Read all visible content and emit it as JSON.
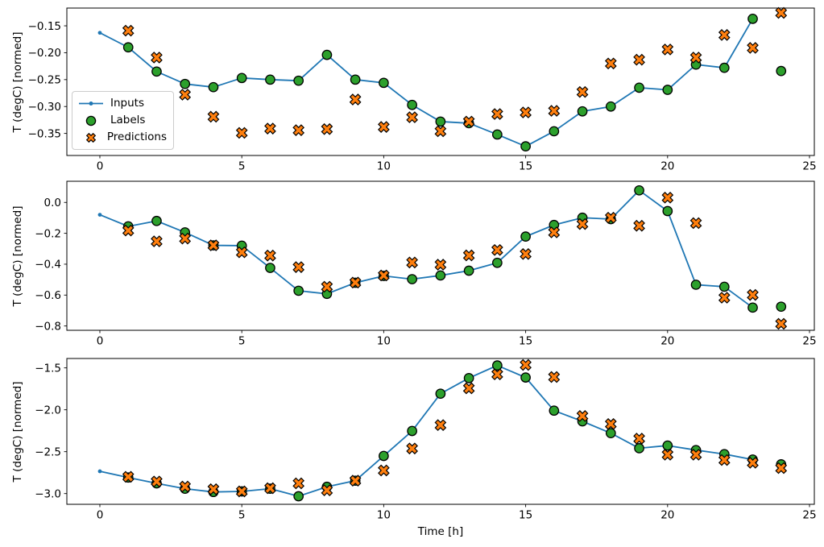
{
  "figure": {
    "background": "#ffffff",
    "title": ""
  },
  "chart_data": [
    {
      "type": "line",
      "title": "",
      "xlabel": "",
      "ylabel": "T (degC) [normed]",
      "grid": false,
      "xlim": [
        -1.163,
        25.17
      ],
      "ylim": [
        -0.391,
        -0.117
      ],
      "xticks": {
        "values": [
          0,
          5,
          10,
          15,
          20,
          25
        ],
        "labels": [
          "0",
          "5",
          "10",
          "15",
          "20",
          "25"
        ]
      },
      "yticks": {
        "values": [
          -0.15,
          -0.2,
          -0.25,
          -0.3,
          -0.35
        ],
        "labels": [
          "−0.15",
          "−0.20",
          "−0.25",
          "−0.30",
          "−0.35"
        ]
      },
      "legend": {
        "visible": true,
        "location": "center left"
      },
      "series": [
        {
          "name": "Inputs",
          "kind": "line",
          "marker": "point",
          "color": "#1f77b4",
          "x": [
            0,
            1,
            2,
            3,
            4,
            5,
            6,
            7,
            8,
            9,
            10,
            11,
            12,
            13,
            14,
            15,
            16,
            17,
            18,
            19,
            20,
            21,
            22,
            23
          ],
          "y": [
            -0.163,
            -0.19,
            -0.235,
            -0.258,
            -0.264,
            -0.247,
            -0.25,
            -0.252,
            -0.204,
            -0.25,
            -0.256,
            -0.297,
            -0.328,
            -0.331,
            -0.352,
            -0.374,
            -0.346,
            -0.309,
            -0.3,
            -0.265,
            -0.269,
            -0.222,
            -0.228,
            -0.137
          ]
        },
        {
          "name": "Labels",
          "kind": "scatter",
          "marker": "circle",
          "color": "#2ca02c",
          "edgecolor": "#000000",
          "x": [
            1,
            2,
            3,
            4,
            5,
            6,
            7,
            8,
            9,
            10,
            11,
            12,
            13,
            14,
            15,
            16,
            17,
            18,
            19,
            20,
            21,
            22,
            23,
            24
          ],
          "y": [
            -0.19,
            -0.235,
            -0.258,
            -0.264,
            -0.247,
            -0.25,
            -0.252,
            -0.204,
            -0.25,
            -0.256,
            -0.297,
            -0.328,
            -0.331,
            -0.352,
            -0.374,
            -0.346,
            -0.309,
            -0.3,
            -0.265,
            -0.269,
            -0.222,
            -0.228,
            -0.137,
            -0.234
          ]
        },
        {
          "name": "Predictions",
          "kind": "scatter",
          "marker": "X",
          "color": "#ff7f0e",
          "edgecolor": "#000000",
          "x": [
            1,
            2,
            3,
            4,
            5,
            6,
            7,
            8,
            9,
            10,
            11,
            12,
            13,
            14,
            15,
            16,
            17,
            18,
            19,
            20,
            21,
            22,
            23,
            24
          ],
          "y": [
            -0.159,
            -0.209,
            -0.278,
            -0.319,
            -0.349,
            -0.341,
            -0.344,
            -0.342,
            -0.287,
            -0.338,
            -0.32,
            -0.346,
            -0.328,
            -0.314,
            -0.311,
            -0.308,
            -0.273,
            -0.22,
            -0.213,
            -0.194,
            -0.209,
            -0.167,
            -0.191,
            -0.126
          ]
        }
      ]
    },
    {
      "type": "line",
      "title": "",
      "xlabel": "",
      "ylabel": "T (degC) [normed]",
      "grid": false,
      "xlim": [
        -1.163,
        25.17
      ],
      "ylim": [
        -0.828,
        0.137
      ],
      "xticks": {
        "values": [
          0,
          5,
          10,
          15,
          20,
          25
        ],
        "labels": [
          "0",
          "5",
          "10",
          "15",
          "20",
          "25"
        ]
      },
      "yticks": {
        "values": [
          0.0,
          -0.2,
          -0.4,
          -0.6,
          -0.8
        ],
        "labels": [
          "0.0",
          "−0.2",
          "−0.4",
          "−0.6",
          "−0.8"
        ]
      },
      "legend": {
        "visible": false
      },
      "series": [
        {
          "name": "Inputs",
          "kind": "line",
          "marker": "point",
          "color": "#1f77b4",
          "x": [
            0,
            1,
            2,
            3,
            4,
            5,
            6,
            7,
            8,
            9,
            10,
            11,
            12,
            13,
            14,
            15,
            16,
            17,
            18,
            19,
            20,
            21,
            22,
            23
          ],
          "y": [
            -0.08,
            -0.155,
            -0.12,
            -0.194,
            -0.278,
            -0.28,
            -0.424,
            -0.572,
            -0.592,
            -0.52,
            -0.476,
            -0.497,
            -0.473,
            -0.442,
            -0.391,
            -0.221,
            -0.146,
            -0.099,
            -0.108,
            0.078,
            -0.056,
            -0.533,
            -0.546,
            -0.681
          ]
        },
        {
          "name": "Labels",
          "kind": "scatter",
          "marker": "circle",
          "color": "#2ca02c",
          "edgecolor": "#000000",
          "x": [
            1,
            2,
            3,
            4,
            5,
            6,
            7,
            8,
            9,
            10,
            11,
            12,
            13,
            14,
            15,
            16,
            17,
            18,
            19,
            20,
            21,
            22,
            23,
            24
          ],
          "y": [
            -0.155,
            -0.12,
            -0.194,
            -0.278,
            -0.28,
            -0.424,
            -0.572,
            -0.592,
            -0.52,
            -0.476,
            -0.497,
            -0.473,
            -0.442,
            -0.391,
            -0.221,
            -0.146,
            -0.099,
            -0.108,
            0.078,
            -0.056,
            -0.533,
            -0.546,
            -0.681,
            -0.675
          ]
        },
        {
          "name": "Predictions",
          "kind": "scatter",
          "marker": "X",
          "color": "#ff7f0e",
          "edgecolor": "#000000",
          "x": [
            1,
            2,
            3,
            4,
            5,
            6,
            7,
            8,
            9,
            10,
            11,
            12,
            13,
            14,
            15,
            16,
            17,
            18,
            19,
            20,
            21,
            22,
            23,
            24
          ],
          "y": [
            -0.182,
            -0.252,
            -0.234,
            -0.278,
            -0.323,
            -0.344,
            -0.419,
            -0.546,
            -0.519,
            -0.473,
            -0.389,
            -0.403,
            -0.343,
            -0.308,
            -0.334,
            -0.194,
            -0.14,
            -0.099,
            -0.151,
            0.031,
            -0.134,
            -0.617,
            -0.599,
            -0.786
          ]
        }
      ]
    },
    {
      "type": "line",
      "title": "",
      "xlabel": "Time [h]",
      "ylabel": "T (degC) [normed]",
      "grid": false,
      "xlim": [
        -1.163,
        25.17
      ],
      "ylim": [
        -3.128,
        -1.388
      ],
      "xticks": {
        "values": [
          0,
          5,
          10,
          15,
          20,
          25
        ],
        "labels": [
          "0",
          "5",
          "10",
          "15",
          "20",
          "25"
        ]
      },
      "yticks": {
        "values": [
          -1.5,
          -2.0,
          -2.5,
          -3.0
        ],
        "labels": [
          "−1.5",
          "−2.0",
          "−2.5",
          "−3.0"
        ]
      },
      "legend": {
        "visible": false
      },
      "series": [
        {
          "name": "Inputs",
          "kind": "line",
          "marker": "point",
          "color": "#1f77b4",
          "x": [
            0,
            1,
            2,
            3,
            4,
            5,
            6,
            7,
            8,
            9,
            10,
            11,
            12,
            13,
            14,
            15,
            16,
            17,
            18,
            19,
            20,
            21,
            22,
            23
          ],
          "y": [
            -2.734,
            -2.808,
            -2.878,
            -2.942,
            -2.981,
            -2.974,
            -2.942,
            -3.032,
            -2.919,
            -2.846,
            -2.551,
            -2.253,
            -1.808,
            -1.622,
            -1.471,
            -1.615,
            -2.01,
            -2.138,
            -2.279,
            -2.459,
            -2.427,
            -2.481,
            -2.529,
            -2.594
          ]
        },
        {
          "name": "Labels",
          "kind": "scatter",
          "marker": "circle",
          "color": "#2ca02c",
          "edgecolor": "#000000",
          "x": [
            1,
            2,
            3,
            4,
            5,
            6,
            7,
            8,
            9,
            10,
            11,
            12,
            13,
            14,
            15,
            16,
            17,
            18,
            19,
            20,
            21,
            22,
            23,
            24
          ],
          "y": [
            -2.808,
            -2.878,
            -2.942,
            -2.981,
            -2.974,
            -2.942,
            -3.032,
            -2.919,
            -2.846,
            -2.551,
            -2.253,
            -1.808,
            -1.622,
            -1.471,
            -1.615,
            -2.01,
            -2.138,
            -2.279,
            -2.459,
            -2.427,
            -2.481,
            -2.529,
            -2.594,
            -2.651
          ]
        },
        {
          "name": "Predictions",
          "kind": "scatter",
          "marker": "X",
          "color": "#ff7f0e",
          "edgecolor": "#000000",
          "x": [
            1,
            2,
            3,
            4,
            5,
            6,
            7,
            8,
            9,
            10,
            11,
            12,
            13,
            14,
            15,
            16,
            17,
            18,
            19,
            20,
            21,
            22,
            23,
            24
          ],
          "y": [
            -2.8,
            -2.856,
            -2.916,
            -2.948,
            -2.974,
            -2.936,
            -2.878,
            -2.961,
            -2.846,
            -2.724,
            -2.462,
            -2.183,
            -1.744,
            -1.577,
            -1.465,
            -1.609,
            -2.074,
            -2.17,
            -2.344,
            -2.536,
            -2.536,
            -2.6,
            -2.632,
            -2.696
          ]
        }
      ]
    }
  ]
}
